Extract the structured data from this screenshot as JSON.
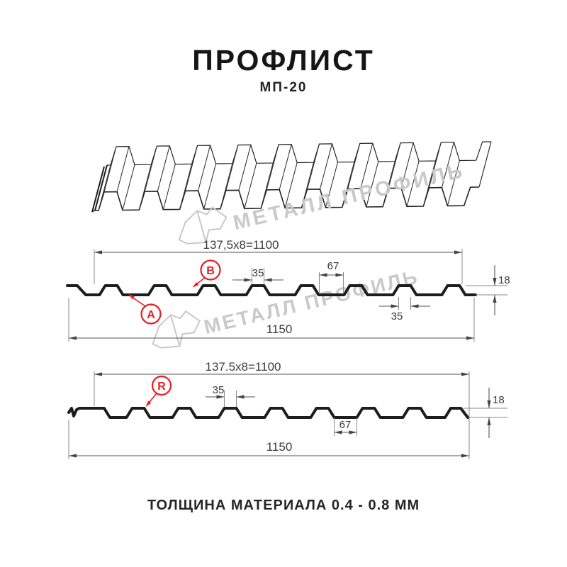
{
  "page": {
    "title": "ПРОФЛИСТ",
    "subtitle": "МП-20",
    "footer": "ТОЛЩИНА МАТЕРИАЛА 0.4 - 0.8 ММ"
  },
  "watermark": {
    "text": "МЕТАЛЛ ПРОФИЛЬ"
  },
  "colors": {
    "accent": "#ed1c24",
    "line": "#1d1d1d",
    "dim_text": "#3c3c3c",
    "watermark": "#c9c9c9"
  },
  "diagram1": {
    "dims": {
      "module": "137,5x8=1100",
      "crown_width": "35",
      "valley_width": "67",
      "height": "18",
      "crown_bottom": "35",
      "total_width": "1150"
    },
    "labels": {
      "a": "А",
      "b": "В"
    }
  },
  "diagram2": {
    "dims": {
      "module": "137.5x8=1100",
      "crown_width": "35",
      "valley_width": "67",
      "height": "18",
      "total_width": "1150"
    },
    "labels": {
      "r": "R"
    }
  }
}
